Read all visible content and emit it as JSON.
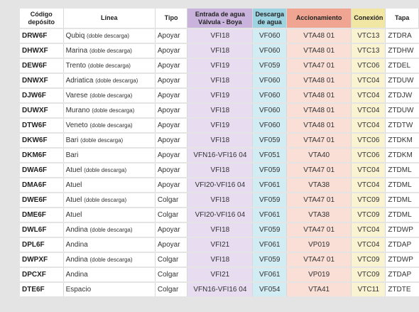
{
  "headers": {
    "codigo_line1": "Código",
    "codigo_line2": "depósito",
    "linea": "Línea",
    "tipo": "Tipo",
    "entrada_line1": "Entrada de agua",
    "entrada_line2": "Válvula - Boya",
    "descarga_line1": "Descarga",
    "descarga_line2": "de agua",
    "accionamiento": "Accionamiento",
    "conexion": "Conexión",
    "tapa": "Tapa"
  },
  "colors": {
    "entrada": "#c9b3dc",
    "descarga": "#9ed4e2",
    "accionamiento": "#efa592",
    "conexion": "#f2e6a5",
    "background": "#e4e4e4"
  },
  "rows": [
    {
      "codigo": "DRW6F",
      "linea": "Qubiq",
      "nota": "(doble descarga)",
      "tipo": "Apoyar",
      "entrada": "VFI18",
      "descarga": "VF060",
      "accionamiento": "VTA48 01",
      "conexion": "VTC13",
      "tapa": "ZTDRA"
    },
    {
      "codigo": "DHWXF",
      "linea": "Marina",
      "nota": "(doble descarga)",
      "tipo": "Apoyar",
      "entrada": "VFI18",
      "descarga": "VF060",
      "accionamiento": "VTA48 01",
      "conexion": "VTC13",
      "tapa": "ZTDHW"
    },
    {
      "codigo": "DEW6F",
      "linea": "Trento",
      "nota": "(doble descarga)",
      "tipo": "Apoyar",
      "entrada": "VFI19",
      "descarga": "VF059",
      "accionamiento": "VTA47 01",
      "conexion": "VTC06",
      "tapa": "ZTDEL"
    },
    {
      "codigo": "DNWXF",
      "linea": "Adriatica",
      "nota": "(doble descarga)",
      "tipo": "Apoyar",
      "entrada": "VFI18",
      "descarga": "VF060",
      "accionamiento": "VTA48 01",
      "conexion": "VTC04",
      "tapa": "ZTDUW"
    },
    {
      "codigo": "DJW6F",
      "linea": "Varese",
      "nota": "(doble descarga)",
      "tipo": "Apoyar",
      "entrada": "VFI19",
      "descarga": "VF060",
      "accionamiento": "VTA48 01",
      "conexion": "VTC04",
      "tapa": "ZTDJW"
    },
    {
      "codigo": "DUWXF",
      "linea": "Murano",
      "nota": "(doble descarga)",
      "tipo": "Apoyar",
      "entrada": "VFI18",
      "descarga": "VF060",
      "accionamiento": "VTA48 01",
      "conexion": "VTC04",
      "tapa": "ZTDUW"
    },
    {
      "codigo": "DTW6F",
      "linea": "Veneto",
      "nota": "(doble descarga)",
      "tipo": "Apoyar",
      "entrada": "VFI19",
      "descarga": "VF060",
      "accionamiento": "VTA48 01",
      "conexion": "VTC04",
      "tapa": "ZTDTW"
    },
    {
      "codigo": "DKW6F",
      "linea": "Bari",
      "nota": "(doble descarga)",
      "tipo": "Apoyar",
      "entrada": "VFI18",
      "descarga": "VF059",
      "accionamiento": "VTA47 01",
      "conexion": "VTC06",
      "tapa": "ZTDKM"
    },
    {
      "codigo": "DKM6F",
      "linea": "Bari",
      "nota": "",
      "tipo": "Apoyar",
      "entrada": "VFN16-VFI16 04",
      "descarga": "VF051",
      "accionamiento": "VTA40",
      "conexion": "VTC06",
      "tapa": "ZTDKM"
    },
    {
      "codigo": "DWA6F",
      "linea": "Atuel",
      "nota": "(doble descarga)",
      "tipo": "Apoyar",
      "entrada": "VFI18",
      "descarga": "VF059",
      "accionamiento": "VTA47 01",
      "conexion": "VTC04",
      "tapa": "ZTDML"
    },
    {
      "codigo": "DMA6F",
      "linea": "Atuel",
      "nota": "",
      "tipo": "Apoyar",
      "entrada": "VFI20-VFI16 04",
      "descarga": "VF061",
      "accionamiento": "VTA38",
      "conexion": "VTC04",
      "tapa": "ZTDML"
    },
    {
      "codigo": "DWE6F",
      "linea": "Atuel",
      "nota": "(doble descarga)",
      "tipo": "Colgar",
      "entrada": "VFI18",
      "descarga": "VF059",
      "accionamiento": "VTA47 01",
      "conexion": "VTC09",
      "tapa": "ZTDML"
    },
    {
      "codigo": "DME6F",
      "linea": "Atuel",
      "nota": "",
      "tipo": "Colgar",
      "entrada": "VFI20-VFI16 04",
      "descarga": "VF061",
      "accionamiento": "VTA38",
      "conexion": "VTC09",
      "tapa": "ZTDML"
    },
    {
      "codigo": "DWL6F",
      "linea": "Andina",
      "nota": "(doble descarga)",
      "tipo": "Apoyar",
      "entrada": "VFI18",
      "descarga": "VF059",
      "accionamiento": "VTA47 01",
      "conexion": "VTC04",
      "tapa": "ZTDWP"
    },
    {
      "codigo": "DPL6F",
      "linea": "Andina",
      "nota": "",
      "tipo": "Apoyar",
      "entrada": "VFI21",
      "descarga": "VF061",
      "accionamiento": "VP019",
      "conexion": "VTC04",
      "tapa": "ZTDAP"
    },
    {
      "codigo": "DWPXF",
      "linea": "Andina",
      "nota": "(doble descarga)",
      "tipo": "Colgar",
      "entrada": "VFI18",
      "descarga": "VF059",
      "accionamiento": "VTA47 01",
      "conexion": "VTC09",
      "tapa": "ZTDWP"
    },
    {
      "codigo": "DPCXF",
      "linea": "Andina",
      "nota": "",
      "tipo": "Colgar",
      "entrada": "VFI21",
      "descarga": "VF061",
      "accionamiento": "VP019",
      "conexion": "VTC09",
      "tapa": "ZTDAP"
    },
    {
      "codigo": "DTE6F",
      "linea": "Espacio",
      "nota": "",
      "tipo": "Colgar",
      "entrada": "VFN16-VFI16 04",
      "descarga": "VF054",
      "accionamiento": "VTA41",
      "conexion": "VTC11",
      "tapa": "ZTDTE"
    }
  ]
}
